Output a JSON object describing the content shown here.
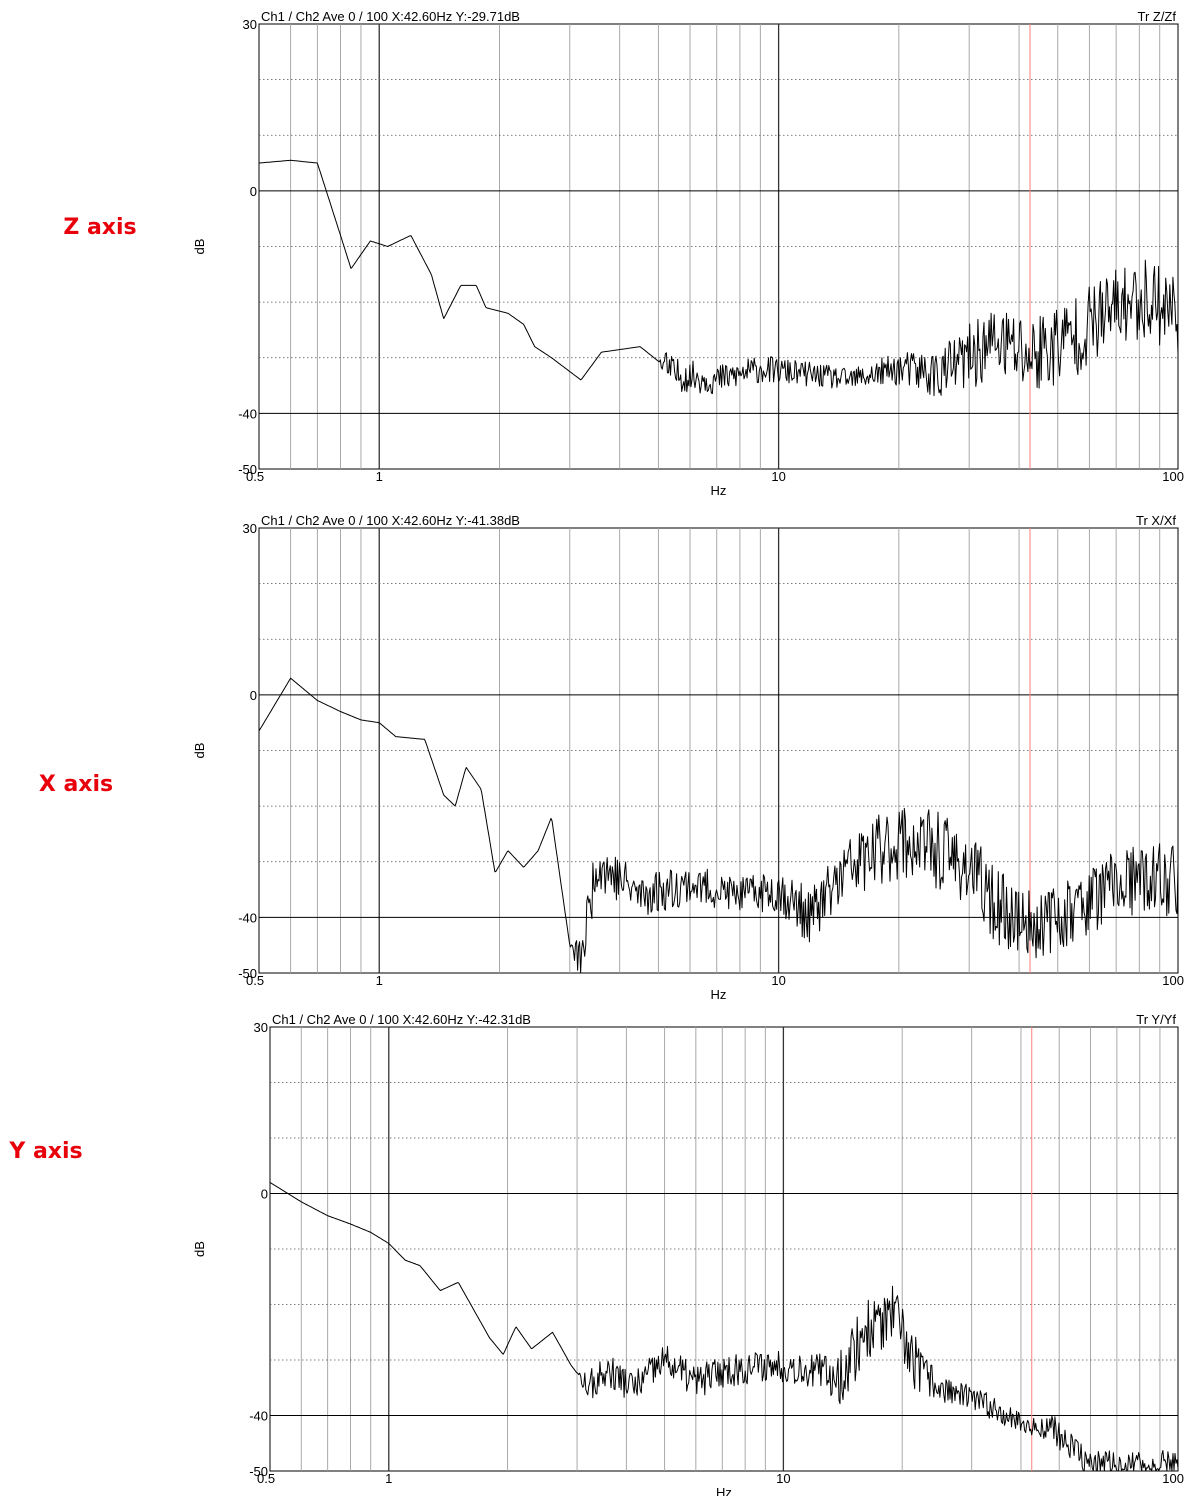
{
  "chart_data": [
    {
      "type": "line",
      "side_label": "Z axis",
      "header_left": "Ch1 / Ch2  Ave 0 / 100  X:42.60Hz  Y:-29.71dB",
      "header_right": "Tr Z/Zf",
      "xlabel": "Hz",
      "ylabel": "dB",
      "x_scale": "log",
      "xlim": [
        0.5,
        100
      ],
      "ylim": [
        -50,
        30
      ],
      "x_ticks": [
        {
          "v": 0.5,
          "t": "0.5"
        },
        {
          "v": 1,
          "t": "1"
        },
        {
          "v": 10,
          "t": "10"
        },
        {
          "v": 100,
          "t": "100"
        }
      ],
      "y_ticks": [
        {
          "v": 30,
          "t": "30"
        },
        {
          "v": 0,
          "t": "0"
        },
        {
          "v": -40,
          "t": "-40"
        },
        {
          "v": -50,
          "t": "-50"
        }
      ],
      "cursor_x": 42.6,
      "seed": 11,
      "points": [
        [
          0.5,
          5
        ],
        [
          0.6,
          5.5
        ],
        [
          0.7,
          5
        ],
        [
          0.8,
          -8
        ],
        [
          0.85,
          -14
        ],
        [
          0.95,
          -9
        ],
        [
          1.05,
          -10
        ],
        [
          1.2,
          -8
        ],
        [
          1.35,
          -15
        ],
        [
          1.45,
          -23
        ],
        [
          1.6,
          -17
        ],
        [
          1.75,
          -17
        ],
        [
          1.85,
          -21
        ],
        [
          2.1,
          -22
        ],
        [
          2.3,
          -24
        ],
        [
          2.45,
          -28
        ],
        [
          2.7,
          -30
        ],
        [
          3.2,
          -34
        ],
        [
          3.6,
          -29
        ],
        [
          4.5,
          -28
        ],
        [
          5.5,
          -33
        ],
        [
          7,
          -34
        ],
        [
          9,
          -32
        ],
        [
          12,
          -33
        ],
        [
          15,
          -34
        ],
        [
          20,
          -32
        ],
        [
          25,
          -33
        ],
        [
          30,
          -30
        ],
        [
          35,
          -27
        ],
        [
          42.6,
          -29.7
        ],
        [
          55,
          -26
        ],
        [
          70,
          -21
        ],
        [
          85,
          -19
        ],
        [
          100,
          -22
        ]
      ],
      "noise": [
        [
          0.5,
          0
        ],
        [
          5,
          0
        ],
        [
          5.2,
          3
        ],
        [
          15,
          2
        ],
        [
          20,
          3
        ],
        [
          30,
          6
        ],
        [
          45,
          8
        ],
        [
          70,
          7
        ],
        [
          100,
          8
        ]
      ]
    },
    {
      "type": "line",
      "side_label": "X axis",
      "header_left": "Ch1 / Ch2  Ave 0 / 100  X:42.60Hz  Y:-41.38dB",
      "header_right": "Tr X/Xf",
      "xlabel": "Hz",
      "ylabel": "dB",
      "x_scale": "log",
      "xlim": [
        0.5,
        100
      ],
      "ylim": [
        -50,
        30
      ],
      "x_ticks": [
        {
          "v": 0.5,
          "t": "0.5"
        },
        {
          "v": 1,
          "t": "1"
        },
        {
          "v": 10,
          "t": "10"
        },
        {
          "v": 100,
          "t": "100"
        }
      ],
      "y_ticks": [
        {
          "v": 30,
          "t": "30"
        },
        {
          "v": 0,
          "t": "0"
        },
        {
          "v": -40,
          "t": "-40"
        },
        {
          "v": -50,
          "t": "-50"
        }
      ],
      "cursor_x": 42.6,
      "seed": 23,
      "points": [
        [
          0.5,
          -6.5
        ],
        [
          0.6,
          3
        ],
        [
          0.7,
          -1
        ],
        [
          0.8,
          -3
        ],
        [
          0.9,
          -4.5
        ],
        [
          1.0,
          -5
        ],
        [
          1.1,
          -7.5
        ],
        [
          1.3,
          -8
        ],
        [
          1.45,
          -18
        ],
        [
          1.55,
          -20
        ],
        [
          1.65,
          -13
        ],
        [
          1.8,
          -17
        ],
        [
          1.95,
          -32
        ],
        [
          2.1,
          -28
        ],
        [
          2.3,
          -31
        ],
        [
          2.5,
          -28
        ],
        [
          2.7,
          -22
        ],
        [
          3.0,
          -45
        ],
        [
          3.2,
          -48
        ],
        [
          3.5,
          -30
        ],
        [
          4.5,
          -36
        ],
        [
          6,
          -34
        ],
        [
          8,
          -36
        ],
        [
          10,
          -35
        ],
        [
          12,
          -40
        ],
        [
          15,
          -31
        ],
        [
          20,
          -26
        ],
        [
          25,
          -28
        ],
        [
          30,
          -31
        ],
        [
          35,
          -38
        ],
        [
          42.6,
          -41.4
        ],
        [
          50,
          -40
        ],
        [
          70,
          -34
        ],
        [
          100,
          -33
        ]
      ],
      "noise": [
        [
          0.5,
          0
        ],
        [
          3,
          0
        ],
        [
          3.2,
          5
        ],
        [
          8,
          3
        ],
        [
          12,
          5
        ],
        [
          20,
          7
        ],
        [
          30,
          7
        ],
        [
          50,
          6
        ],
        [
          100,
          7
        ]
      ]
    },
    {
      "type": "line",
      "side_label": "Y axis",
      "header_left": "Ch1 / Ch2  Ave 0 / 100  X:42.60Hz  Y:-42.31dB",
      "header_right": "Tr Y/Yf",
      "xlabel": "Hz",
      "ylabel": "dB",
      "x_scale": "log",
      "xlim": [
        0.5,
        100
      ],
      "ylim": [
        -50,
        30
      ],
      "x_ticks": [
        {
          "v": 0.5,
          "t": "0.5"
        },
        {
          "v": 1,
          "t": "1"
        },
        {
          "v": 10,
          "t": "10"
        },
        {
          "v": 100,
          "t": "100"
        }
      ],
      "y_ticks": [
        {
          "v": 30,
          "t": "30"
        },
        {
          "v": 0,
          "t": "0"
        },
        {
          "v": -40,
          "t": "-40"
        },
        {
          "v": -50,
          "t": "-50"
        }
      ],
      "cursor_x": 42.6,
      "seed": 37,
      "points": [
        [
          0.5,
          2
        ],
        [
          0.6,
          -1.5
        ],
        [
          0.7,
          -4
        ],
        [
          0.8,
          -5.5
        ],
        [
          0.9,
          -7
        ],
        [
          1.0,
          -9
        ],
        [
          1.1,
          -12
        ],
        [
          1.2,
          -13
        ],
        [
          1.35,
          -17.5
        ],
        [
          1.5,
          -16
        ],
        [
          1.8,
          -26
        ],
        [
          1.95,
          -29
        ],
        [
          2.1,
          -24
        ],
        [
          2.3,
          -28
        ],
        [
          2.6,
          -25
        ],
        [
          2.9,
          -31
        ],
        [
          3.2,
          -35
        ],
        [
          3.6,
          -32
        ],
        [
          4.2,
          -35
        ],
        [
          5,
          -30
        ],
        [
          6,
          -34
        ],
        [
          7,
          -32
        ],
        [
          9,
          -31
        ],
        [
          10,
          -31
        ],
        [
          12,
          -32
        ],
        [
          14,
          -33
        ],
        [
          16,
          -25
        ],
        [
          19,
          -22
        ],
        [
          22,
          -32
        ],
        [
          25,
          -35
        ],
        [
          30,
          -37
        ],
        [
          35,
          -39
        ],
        [
          42.6,
          -42.3
        ],
        [
          48,
          -42
        ],
        [
          52,
          -45
        ],
        [
          60,
          -49
        ],
        [
          80,
          -49
        ],
        [
          100,
          -48
        ]
      ],
      "noise": [
        [
          0.5,
          0
        ],
        [
          3,
          0
        ],
        [
          3.2,
          3
        ],
        [
          12,
          3
        ],
        [
          15,
          6
        ],
        [
          22,
          5
        ],
        [
          25,
          2.5
        ],
        [
          45,
          2
        ],
        [
          55,
          3
        ],
        [
          100,
          2
        ]
      ]
    }
  ]
}
